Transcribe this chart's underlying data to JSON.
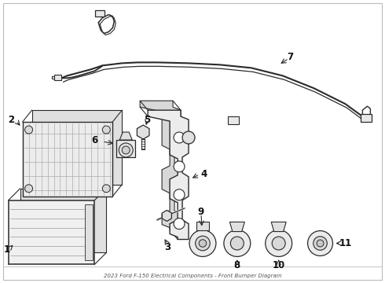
{
  "title": "2023 Ford F-150 Electrical Components - Front Bumper Diagram",
  "background_color": "#ffffff",
  "line_color": "#2a2a2a",
  "label_color": "#111111",
  "fig_w": 4.9,
  "fig_h": 3.6,
  "dpi": 100
}
